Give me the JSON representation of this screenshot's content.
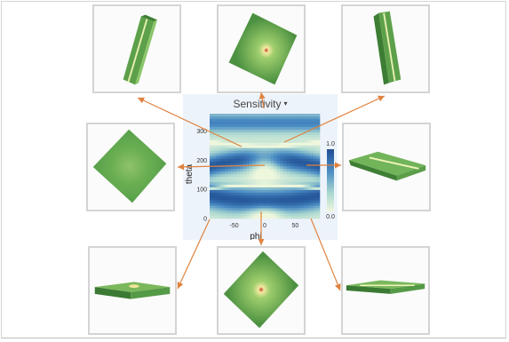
{
  "dropdown": {
    "label": "Sensitivity",
    "caret": "▾"
  },
  "colors": {
    "arrow": "#e0833f",
    "heat_low": "#e9f5d2",
    "heat_high": "#2b5fa9",
    "thumb_border": "#d4d4d4"
  },
  "thumbnails": [
    {
      "name": "thumb-top-left",
      "icon": "tilted-slab-view"
    },
    {
      "name": "thumb-top-center",
      "icon": "face-on-plane-view"
    },
    {
      "name": "thumb-top-right",
      "icon": "tilted-slab-view"
    },
    {
      "name": "thumb-middle-left",
      "icon": "rotated-plane-view"
    },
    {
      "name": "thumb-middle-right",
      "icon": "side-slab-view"
    },
    {
      "name": "thumb-bottom-left",
      "icon": "edge-on-slab-view"
    },
    {
      "name": "thumb-bottom-center",
      "icon": "face-on-plane-view"
    },
    {
      "name": "thumb-bottom-right",
      "icon": "edge-on-slab-view"
    }
  ],
  "chart_data": {
    "type": "heatmap",
    "title": "Sensitivity",
    "xlabel": "phi",
    "ylabel": "theta",
    "x_ticks": [
      -50,
      0,
      50
    ],
    "y_ticks": [
      0,
      100,
      200,
      300
    ],
    "xlim": [
      -90,
      90
    ],
    "ylim": [
      0,
      360
    ],
    "colorbar": {
      "min": 0.0,
      "max": 1.0,
      "tick_labels": [
        "1.0",
        "0.0"
      ]
    },
    "description_values": {
      "high_band_theta": [
        100,
        170,
        230,
        290
      ],
      "low_theta_centers": [
        30,
        260,
        330
      ]
    }
  }
}
